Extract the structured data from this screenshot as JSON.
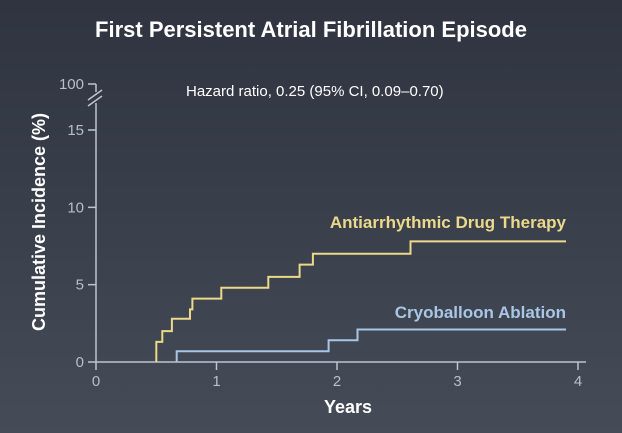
{
  "chart_data": {
    "type": "line",
    "title": "First Persistent Atrial Fibrillation Episode",
    "annotation": "Hazard ratio, 0.25 (95% CI, 0.09–0.70)",
    "xlabel": "Years",
    "ylabel": "Cumulative Incidence (%)",
    "xlim": [
      0,
      4
    ],
    "ylim": [
      0,
      15
    ],
    "x_ticks": [
      "0",
      "1",
      "2",
      "3",
      "4"
    ],
    "y_ticks": [
      "0",
      "5",
      "10",
      "15"
    ],
    "y_break_label": "100",
    "step": true,
    "grid": false,
    "series": [
      {
        "name": "Antiarrhythmic Drug Therapy",
        "color": "#ecd98a",
        "x": [
          0.5,
          0.5,
          0.55,
          0.55,
          0.63,
          0.63,
          0.78,
          0.78,
          0.8,
          0.8,
          0.95,
          0.95,
          1.04,
          1.04,
          1.43,
          1.43,
          1.69,
          1.69,
          1.8,
          1.8,
          2.61,
          2.61,
          2.87,
          2.87,
          3.9
        ],
        "y": [
          0,
          1.3,
          1.3,
          2.0,
          2.0,
          2.8,
          2.8,
          3.4,
          3.4,
          4.1,
          4.1,
          4.1,
          4.1,
          4.8,
          4.8,
          5.5,
          5.5,
          6.3,
          6.3,
          7.0,
          7.0,
          7.8,
          7.8,
          7.8,
          7.8
        ],
        "label": "Antiarrhythmic Drug Therapy"
      },
      {
        "name": "Cryoballoon Ablation",
        "color": "#a9c6e6",
        "x": [
          0.67,
          0.67,
          1.93,
          1.93,
          2.17,
          2.17,
          3.9
        ],
        "y": [
          0,
          0.7,
          0.7,
          1.4,
          1.4,
          2.1,
          2.1
        ],
        "label": "Cryoballoon Ablation"
      }
    ]
  }
}
